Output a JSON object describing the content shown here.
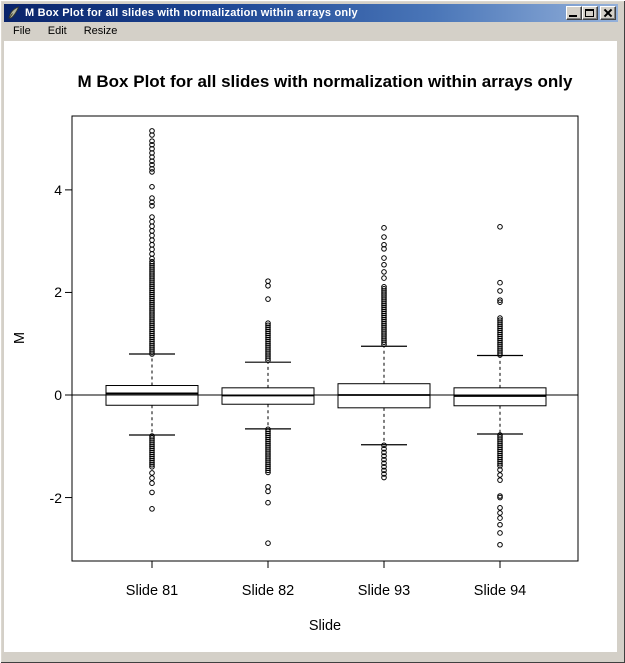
{
  "window": {
    "title": "M Box Plot for all slides with normalization within arrays only"
  },
  "icons": {
    "app_icon": "quill-icon",
    "titlebar_buttons": [
      "minimize-icon",
      "maximize-icon",
      "close-icon"
    ]
  },
  "menu": {
    "items": [
      "File",
      "Edit",
      "Resize"
    ]
  },
  "colors": {
    "titlebar_gradient_left": "#0a246a",
    "titlebar_gradient_right": "#93b0da",
    "chrome": "#d4d0c8",
    "plot_background": "#ffffff",
    "plot_line": "#000000",
    "title_text": "#ffffff"
  },
  "chart_data": {
    "type": "boxplot",
    "title": "M Box Plot for all slides with normalization within arrays only",
    "xlabel": "Slide",
    "ylabel": "M",
    "categories": [
      "Slide 81",
      "Slide 82",
      "Slide 93",
      "Slide 94"
    ],
    "ytick_labels": [
      "4",
      "2",
      "0",
      "-2"
    ],
    "ytick_values": [
      4,
      2,
      0,
      -2
    ],
    "ylim": [
      -3.24,
      5.44
    ],
    "reference_line_y": 0,
    "grid": "off",
    "series": [
      {
        "name": "Slide 81",
        "median": 0.03,
        "q1": -0.2,
        "q3": 0.185,
        "whisker_low": -0.78,
        "whisker_high": 0.8,
        "outliers_high": {
          "points": [
            5.15,
            5.07,
            4.95,
            4.88,
            4.8,
            4.72,
            4.64,
            4.56,
            4.49,
            4.41,
            4.35,
            4.06,
            3.84,
            3.76,
            3.69
          ],
          "dense": [
            [
              3.47,
              2.65,
              0.09
            ],
            [
              2.6,
              0.8,
              0.04
            ]
          ]
        },
        "outliers_low": {
          "points": [
            -1.52,
            -1.62,
            -1.72,
            -1.9,
            -2.22
          ],
          "dense": [
            [
              -0.8,
              -1.42,
              0.04
            ]
          ]
        }
      },
      {
        "name": "Slide 82",
        "median": -0.01,
        "q1": -0.18,
        "q3": 0.14,
        "whisker_low": -0.66,
        "whisker_high": 0.64,
        "outliers_high": {
          "points": [
            2.22,
            2.13,
            1.87
          ],
          "dense": [
            [
              1.4,
              0.65,
              0.04
            ]
          ]
        },
        "outliers_low": {
          "points": [
            -1.79,
            -1.88,
            -2.1,
            -2.89
          ],
          "dense": [
            [
              -0.67,
              -1.52,
              0.04
            ]
          ]
        }
      },
      {
        "name": "Slide 93",
        "median": 0.0,
        "q1": -0.25,
        "q3": 0.22,
        "whisker_low": -0.97,
        "whisker_high": 0.95,
        "outliers_high": {
          "points": [
            3.26,
            3.08,
            2.93,
            2.85,
            2.67,
            2.54,
            2.4,
            2.28
          ],
          "dense": [
            [
              2.11,
              0.96,
              0.04
            ]
          ]
        },
        "outliers_low": {
          "points": [],
          "dense": [
            [
              -0.98,
              -1.66,
              0.07
            ]
          ]
        }
      },
      {
        "name": "Slide 94",
        "median": -0.02,
        "q1": -0.21,
        "q3": 0.14,
        "whisker_low": -0.76,
        "whisker_high": 0.77,
        "outliers_high": {
          "points": [
            3.28,
            2.19,
            2.03,
            1.85,
            1.81
          ],
          "dense": [
            [
              1.5,
              0.76,
              0.04
            ]
          ]
        },
        "outliers_low": {
          "points": [
            -1.46,
            -1.56,
            -1.66,
            -1.97,
            -2.0,
            -2.2,
            -2.3,
            -2.4,
            -2.53,
            -2.69,
            -2.92
          ],
          "dense": [
            [
              -0.78,
              -1.4,
              0.04
            ]
          ]
        }
      }
    ]
  }
}
